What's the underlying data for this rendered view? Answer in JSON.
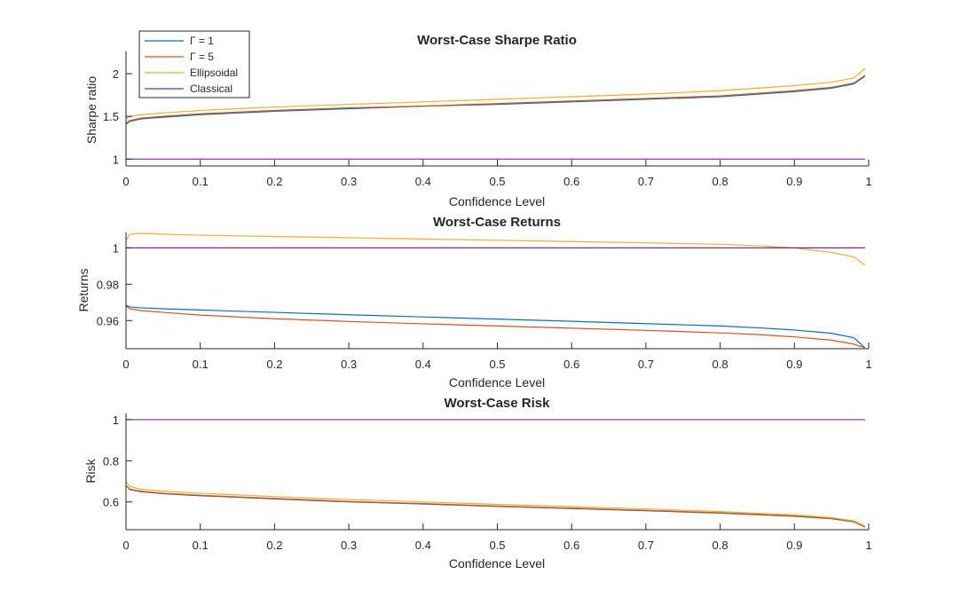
{
  "colors": {
    "gamma1": "#0072BD",
    "gamma5": "#D95319",
    "ellipsoidal": "#EDB120",
    "classical": "#7E2F8E",
    "axis": "#262626"
  },
  "legend": {
    "placement": "top-left",
    "entries": [
      "Γ = 1",
      "Γ = 5",
      "Ellipsoidal",
      "Classical"
    ]
  },
  "chart_data": [
    {
      "type": "line",
      "title": "Worst-Case Sharpe Ratio",
      "xlabel": "Confidence Level",
      "ylabel": "Sharpe ratio",
      "xlim": [
        0,
        1
      ],
      "ylim": [
        0.92,
        2.26
      ],
      "xticks": [
        0,
        0.1,
        0.2,
        0.3,
        0.4,
        0.5,
        0.6,
        0.7,
        0.8,
        0.9,
        1
      ],
      "xtick_labels": [
        "0",
        "0.1",
        "0.2",
        "0.3",
        "0.4",
        "0.5",
        "0.6",
        "0.7",
        "0.8",
        "0.9",
        "1"
      ],
      "yticks": [
        1,
        1.5,
        2
      ],
      "ytick_labels": [
        "1",
        "1.5",
        "2"
      ],
      "grid": false,
      "x": [
        0,
        0.005,
        0.02,
        0.05,
        0.1,
        0.2,
        0.3,
        0.4,
        0.5,
        0.6,
        0.7,
        0.8,
        0.9,
        0.95,
        0.98,
        0.995
      ],
      "series": [
        {
          "name": "Γ = 1",
          "color_key": "gamma1",
          "values": [
            1.41,
            1.44,
            1.47,
            1.49,
            1.52,
            1.56,
            1.59,
            1.62,
            1.64,
            1.67,
            1.7,
            1.73,
            1.79,
            1.83,
            1.88,
            1.97
          ]
        },
        {
          "name": "Γ = 5",
          "color_key": "gamma5",
          "values": [
            1.42,
            1.45,
            1.48,
            1.5,
            1.53,
            1.57,
            1.6,
            1.62,
            1.65,
            1.68,
            1.71,
            1.74,
            1.8,
            1.84,
            1.89,
            1.98
          ]
        },
        {
          "name": "Ellipsoidal",
          "color_key": "ellipsoidal",
          "values": [
            1.47,
            1.5,
            1.52,
            1.54,
            1.57,
            1.61,
            1.64,
            1.67,
            1.7,
            1.73,
            1.76,
            1.8,
            1.86,
            1.9,
            1.95,
            2.06
          ]
        },
        {
          "name": "Classical",
          "color_key": "classical",
          "values": [
            1,
            1,
            1,
            1,
            1,
            1,
            1,
            1,
            1,
            1,
            1,
            1,
            1,
            1,
            1,
            1
          ]
        }
      ]
    },
    {
      "type": "line",
      "title": "Worst-Case Returns",
      "xlabel": "Confidence Level",
      "ylabel": "Returns",
      "xlim": [
        0,
        1
      ],
      "ylim": [
        0.9445,
        1.0085
      ],
      "xticks": [
        0,
        0.1,
        0.2,
        0.3,
        0.4,
        0.5,
        0.6,
        0.7,
        0.8,
        0.9,
        1
      ],
      "xtick_labels": [
        "0",
        "0.1",
        "0.2",
        "0.3",
        "0.4",
        "0.5",
        "0.6",
        "0.7",
        "0.8",
        "0.9",
        "1"
      ],
      "yticks": [
        0.96,
        0.98,
        1
      ],
      "ytick_labels": [
        "0.96",
        "0.98",
        "1"
      ],
      "grid": false,
      "x": [
        0,
        0.005,
        0.02,
        0.05,
        0.1,
        0.2,
        0.3,
        0.4,
        0.5,
        0.6,
        0.7,
        0.8,
        0.85,
        0.9,
        0.95,
        0.98,
        0.995
      ],
      "series": [
        {
          "name": "Γ = 1",
          "color_key": "gamma1",
          "values": [
            0.9685,
            0.9675,
            0.967,
            0.9665,
            0.9658,
            0.9645,
            0.9632,
            0.962,
            0.9608,
            0.9596,
            0.9583,
            0.957,
            0.956,
            0.9548,
            0.953,
            0.9505,
            0.945
          ]
        },
        {
          "name": "Γ = 5",
          "color_key": "gamma5",
          "values": [
            0.968,
            0.9665,
            0.9655,
            0.9645,
            0.963,
            0.961,
            0.9595,
            0.9582,
            0.957,
            0.9558,
            0.9546,
            0.9532,
            0.9523,
            0.951,
            0.9492,
            0.947,
            0.945
          ]
        },
        {
          "name": "Ellipsoidal",
          "color_key": "ellipsoidal",
          "values": [
            1.004,
            1.0075,
            1.008,
            1.0076,
            1.007,
            1.0063,
            1.0056,
            1.0049,
            1.0042,
            1.0035,
            1.0028,
            1.002,
            1.0012,
            1.0,
            0.9975,
            0.995,
            0.9905
          ]
        },
        {
          "name": "Classical",
          "color_key": "classical",
          "values": [
            1,
            1,
            1,
            1,
            1,
            1,
            1,
            1,
            1,
            1,
            1,
            1,
            1,
            1,
            1,
            1,
            1
          ]
        }
      ]
    },
    {
      "type": "line",
      "title": "Worst-Case Risk",
      "xlabel": "Confidence Level",
      "ylabel": "Risk",
      "xlim": [
        0,
        1
      ],
      "ylim": [
        0.465,
        1.03
      ],
      "xticks": [
        0,
        0.1,
        0.2,
        0.3,
        0.4,
        0.5,
        0.6,
        0.7,
        0.8,
        0.9,
        1
      ],
      "xtick_labels": [
        "0",
        "0.1",
        "0.2",
        "0.3",
        "0.4",
        "0.5",
        "0.6",
        "0.7",
        "0.8",
        "0.9",
        "1"
      ],
      "yticks": [
        0.6,
        0.8,
        1
      ],
      "ytick_labels": [
        "0.6",
        "0.8",
        "1"
      ],
      "grid": false,
      "x": [
        0,
        0.005,
        0.02,
        0.05,
        0.1,
        0.2,
        0.3,
        0.4,
        0.5,
        0.6,
        0.7,
        0.8,
        0.9,
        0.95,
        0.98,
        0.995
      ],
      "series": [
        {
          "name": "Γ = 1",
          "color_key": "gamma1",
          "values": [
            0.68,
            0.66,
            0.65,
            0.64,
            0.63,
            0.615,
            0.6,
            0.59,
            0.578,
            0.568,
            0.557,
            0.545,
            0.53,
            0.518,
            0.503,
            0.478
          ]
        },
        {
          "name": "Γ = 5",
          "color_key": "gamma5",
          "values": [
            0.68,
            0.662,
            0.652,
            0.642,
            0.632,
            0.617,
            0.602,
            0.592,
            0.58,
            0.57,
            0.559,
            0.547,
            0.532,
            0.52,
            0.505,
            0.478
          ]
        },
        {
          "name": "Ellipsoidal",
          "color_key": "ellipsoidal",
          "values": [
            0.7,
            0.675,
            0.662,
            0.652,
            0.642,
            0.626,
            0.612,
            0.6,
            0.588,
            0.578,
            0.566,
            0.553,
            0.537,
            0.524,
            0.508,
            0.483
          ]
        },
        {
          "name": "Classical",
          "color_key": "classical",
          "values": [
            1,
            1,
            1,
            1,
            1,
            1,
            1,
            1,
            1,
            1,
            1,
            1,
            1,
            1,
            1,
            1
          ]
        }
      ]
    }
  ]
}
